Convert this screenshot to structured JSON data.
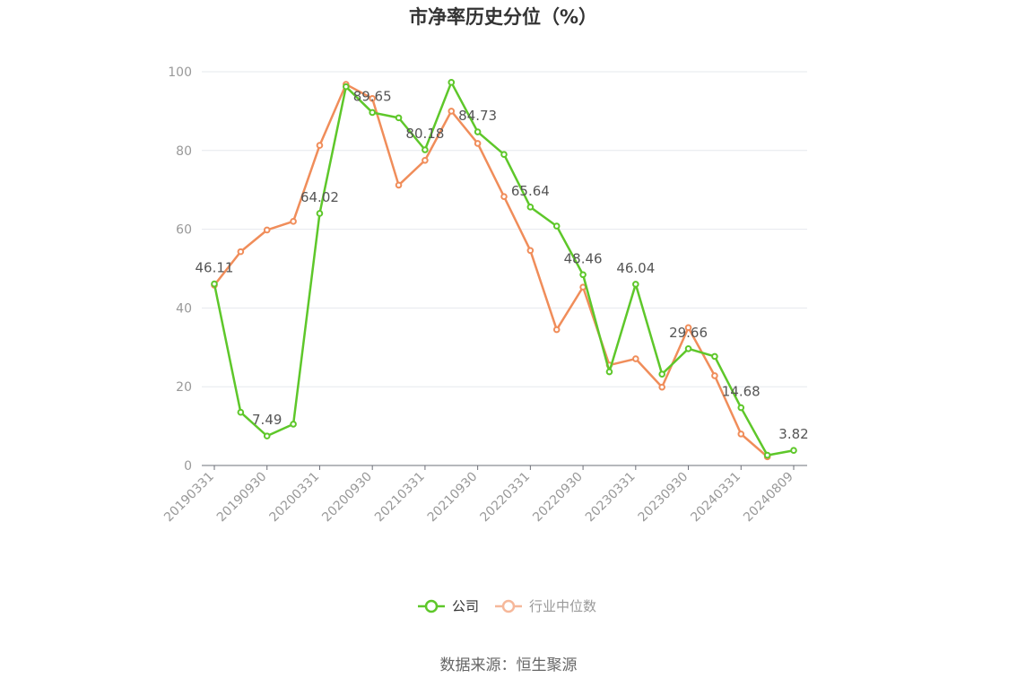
{
  "chart_data": {
    "type": "line",
    "title": "市净率历史分位（%）",
    "ylim": [
      0,
      100
    ],
    "yticks": [
      0,
      20,
      40,
      60,
      80,
      100
    ],
    "grid": true,
    "legend_position": "bottom-center",
    "x": [
      "20190331",
      "20190630",
      "20190930",
      "20191231",
      "20200331",
      "20200630",
      "20200930",
      "20201231",
      "20210331",
      "20210630",
      "20210930",
      "20211231",
      "20220331",
      "20220630",
      "20220930",
      "20221231",
      "20230331",
      "20230630",
      "20230930",
      "20231231",
      "20240331",
      "20240630",
      "20240809"
    ],
    "xtick_labels": [
      "20190331",
      "20190930",
      "20200331",
      "20200930",
      "20210331",
      "20210930",
      "20220331",
      "20220930",
      "20230331",
      "20230930",
      "20240331",
      "20240809"
    ],
    "series": [
      {
        "name": "公司",
        "color": "#5ec72a",
        "values": [
          46.11,
          13.5,
          7.49,
          10.5,
          64.02,
          96.2,
          89.65,
          88.3,
          80.18,
          97.3,
          84.73,
          79.0,
          65.64,
          60.8,
          48.46,
          23.8,
          46.04,
          23.2,
          29.66,
          27.7,
          14.68,
          2.6,
          3.82
        ],
        "labels": {
          "0": "46.11",
          "2": "7.49",
          "4": "64.02",
          "6": "89.65",
          "8": "80.18",
          "10": "84.73",
          "12": "65.64",
          "14": "48.46",
          "16": "46.04",
          "18": "29.66",
          "20": "14.68",
          "22": "3.82"
        }
      },
      {
        "name": "行业中位数",
        "color": "#f08d5a",
        "values": [
          45.8,
          54.3,
          59.8,
          62.0,
          81.3,
          96.8,
          93.2,
          71.2,
          77.5,
          90.0,
          81.8,
          68.3,
          54.6,
          34.5,
          45.3,
          25.5,
          27.1,
          19.9,
          35.0,
          22.8,
          8.0,
          2.2,
          null
        ]
      }
    ]
  },
  "footer": {
    "source": "数据来源：恒生聚源"
  }
}
